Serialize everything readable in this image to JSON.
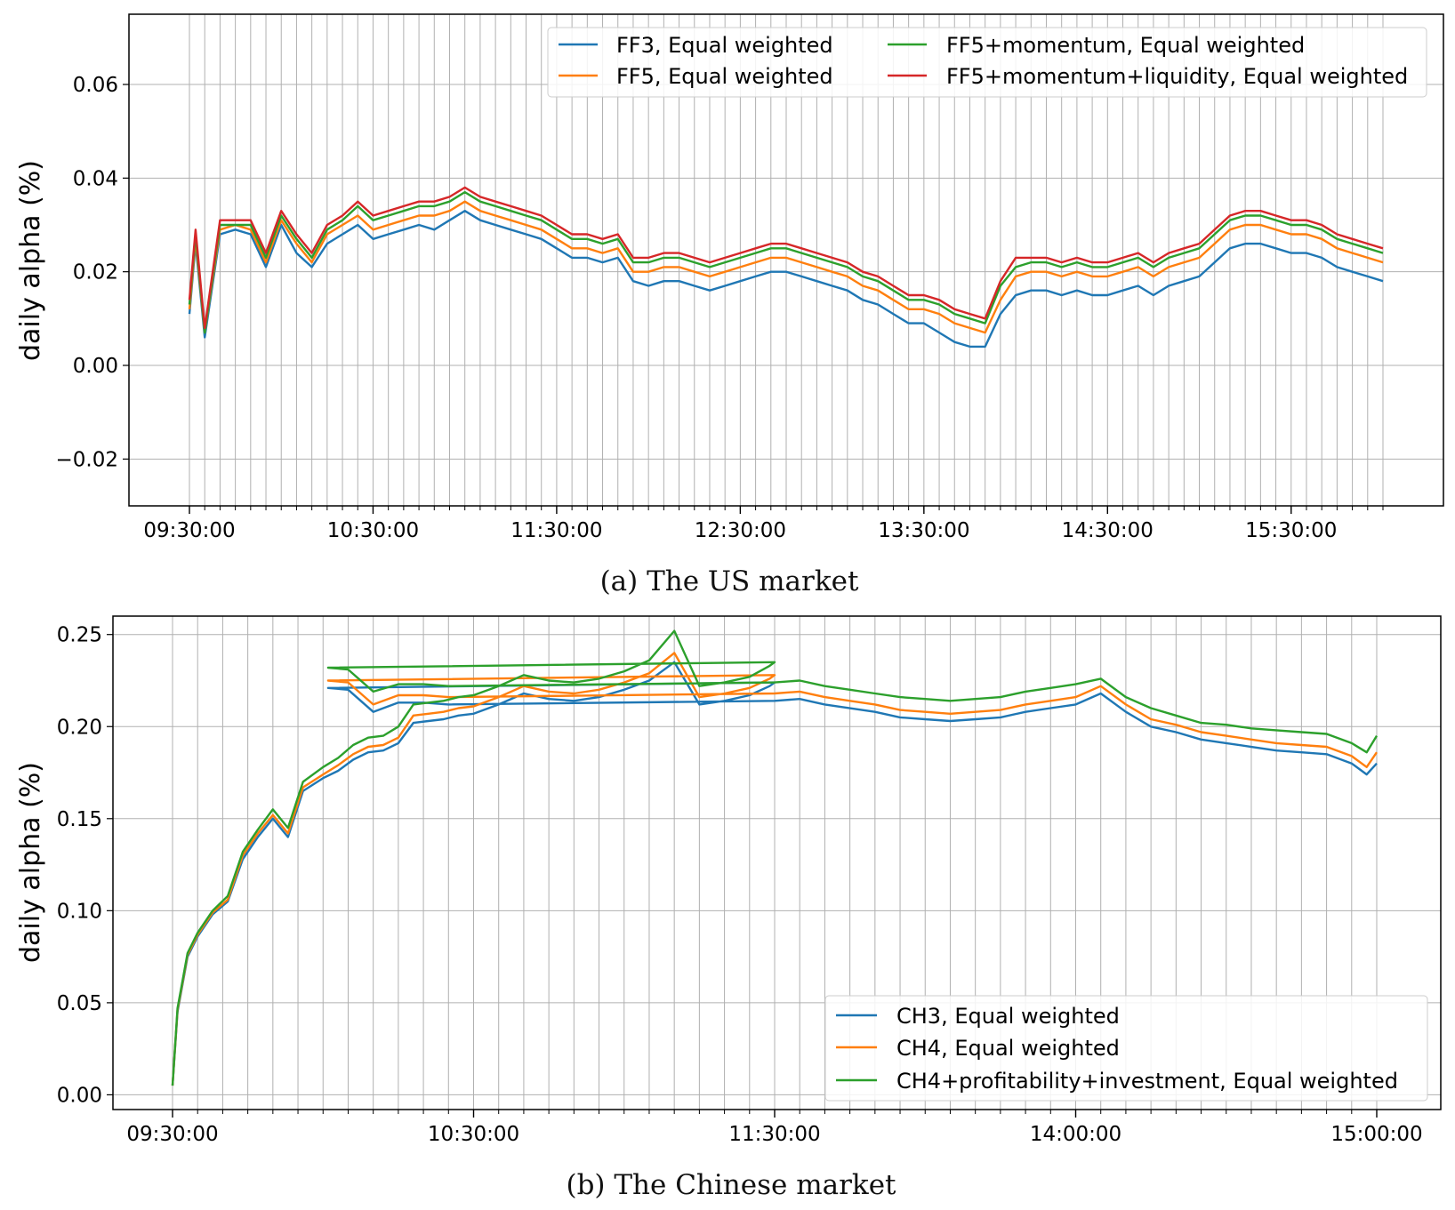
{
  "chart_data": [
    {
      "type": "line",
      "caption": "(a) The US market",
      "ylabel": "daily alpha (%)",
      "ylim": [
        -0.03,
        0.075
      ],
      "yticks": [
        -0.02,
        0.0,
        0.02,
        0.04,
        0.06
      ],
      "ytick_labels": [
        "−0.02",
        "0.00",
        "0.02",
        "0.04",
        "0.06"
      ],
      "x_range": [
        "09:30:00",
        "16:00:00"
      ],
      "xtick_labels": [
        "09:30:00",
        "10:30:00",
        "11:30:00",
        "12:30:00",
        "13:30:00",
        "14:30:00",
        "15:30:00"
      ],
      "grid": true,
      "legend_position": "top-right",
      "legend_columns": 2,
      "x": [
        "09:30",
        "09:32",
        "09:35",
        "09:40",
        "09:45",
        "09:50",
        "09:55",
        "10:00",
        "10:05",
        "10:10",
        "10:15",
        "10:20",
        "10:25",
        "10:30",
        "10:35",
        "10:40",
        "10:45",
        "10:50",
        "10:55",
        "11:00",
        "11:05",
        "11:10",
        "11:15",
        "11:20",
        "11:25",
        "11:30",
        "11:35",
        "11:40",
        "11:45",
        "11:50",
        "11:55",
        "12:00",
        "12:05",
        "12:10",
        "12:15",
        "12:20",
        "12:25",
        "12:30",
        "12:35",
        "12:40",
        "12:45",
        "12:50",
        "12:55",
        "13:00",
        "13:05",
        "13:10",
        "13:15",
        "13:20",
        "13:25",
        "13:30",
        "13:35",
        "13:40",
        "13:45",
        "13:50",
        "13:55",
        "14:00",
        "14:05",
        "14:10",
        "14:15",
        "14:20",
        "14:25",
        "14:30",
        "14:35",
        "14:40",
        "14:45",
        "14:50",
        "14:55",
        "15:00",
        "15:05",
        "15:10",
        "15:15",
        "15:20",
        "15:25",
        "15:30",
        "15:35",
        "15:40",
        "15:45",
        "15:50",
        "15:55",
        "16:00"
      ],
      "series": [
        {
          "name": "FF3, Equal weighted",
          "color": "#1f77b4",
          "values": [
            0.011,
            0.026,
            0.006,
            0.028,
            0.029,
            0.028,
            0.021,
            0.03,
            0.024,
            0.021,
            0.026,
            0.028,
            0.03,
            0.027,
            0.028,
            0.029,
            0.03,
            0.029,
            0.031,
            0.033,
            0.031,
            0.03,
            0.029,
            0.028,
            0.027,
            0.025,
            0.023,
            0.023,
            0.022,
            0.023,
            0.018,
            0.017,
            0.018,
            0.018,
            0.017,
            0.016,
            0.017,
            0.018,
            0.019,
            0.02,
            0.02,
            0.019,
            0.018,
            0.017,
            0.016,
            0.014,
            0.013,
            0.011,
            0.009,
            0.009,
            0.007,
            0.005,
            0.004,
            0.004,
            0.011,
            0.015,
            0.016,
            0.016,
            0.015,
            0.016,
            0.015,
            0.015,
            0.016,
            0.017,
            0.015,
            0.017,
            0.018,
            0.019,
            0.022,
            0.025,
            0.026,
            0.026,
            0.025,
            0.024,
            0.024,
            0.023,
            0.021,
            0.02,
            0.019,
            0.018
          ]
        },
        {
          "name": "FF5, Equal weighted",
          "color": "#ff7f0e",
          "values": [
            0.012,
            0.027,
            0.007,
            0.029,
            0.03,
            0.029,
            0.022,
            0.031,
            0.026,
            0.022,
            0.028,
            0.03,
            0.032,
            0.029,
            0.03,
            0.031,
            0.032,
            0.032,
            0.033,
            0.035,
            0.033,
            0.032,
            0.031,
            0.03,
            0.029,
            0.027,
            0.025,
            0.025,
            0.024,
            0.025,
            0.02,
            0.02,
            0.021,
            0.021,
            0.02,
            0.019,
            0.02,
            0.021,
            0.022,
            0.023,
            0.023,
            0.022,
            0.021,
            0.02,
            0.019,
            0.017,
            0.016,
            0.014,
            0.012,
            0.012,
            0.011,
            0.009,
            0.008,
            0.007,
            0.014,
            0.019,
            0.02,
            0.02,
            0.019,
            0.02,
            0.019,
            0.019,
            0.02,
            0.021,
            0.019,
            0.021,
            0.022,
            0.023,
            0.026,
            0.029,
            0.03,
            0.03,
            0.029,
            0.028,
            0.028,
            0.027,
            0.025,
            0.024,
            0.023,
            0.022
          ]
        },
        {
          "name": "FF5+momentum, Equal weighted",
          "color": "#2ca02c",
          "values": [
            0.013,
            0.028,
            0.007,
            0.03,
            0.03,
            0.03,
            0.023,
            0.032,
            0.027,
            0.023,
            0.029,
            0.031,
            0.034,
            0.031,
            0.032,
            0.033,
            0.034,
            0.034,
            0.035,
            0.037,
            0.035,
            0.034,
            0.033,
            0.032,
            0.031,
            0.029,
            0.027,
            0.027,
            0.026,
            0.027,
            0.022,
            0.022,
            0.023,
            0.023,
            0.022,
            0.021,
            0.022,
            0.023,
            0.024,
            0.025,
            0.025,
            0.024,
            0.023,
            0.022,
            0.021,
            0.019,
            0.018,
            0.016,
            0.014,
            0.014,
            0.013,
            0.011,
            0.01,
            0.009,
            0.017,
            0.021,
            0.022,
            0.022,
            0.021,
            0.022,
            0.021,
            0.021,
            0.022,
            0.023,
            0.021,
            0.023,
            0.024,
            0.025,
            0.028,
            0.031,
            0.032,
            0.032,
            0.031,
            0.03,
            0.03,
            0.029,
            0.027,
            0.026,
            0.025,
            0.024
          ]
        },
        {
          "name": "FF5+momentum+liquidity, Equal weighted",
          "color": "#d62728",
          "values": [
            0.014,
            0.029,
            0.008,
            0.031,
            0.031,
            0.031,
            0.024,
            0.033,
            0.028,
            0.024,
            0.03,
            0.032,
            0.035,
            0.032,
            0.033,
            0.034,
            0.035,
            0.035,
            0.036,
            0.038,
            0.036,
            0.035,
            0.034,
            0.033,
            0.032,
            0.03,
            0.028,
            0.028,
            0.027,
            0.028,
            0.023,
            0.023,
            0.024,
            0.024,
            0.023,
            0.022,
            0.023,
            0.024,
            0.025,
            0.026,
            0.026,
            0.025,
            0.024,
            0.023,
            0.022,
            0.02,
            0.019,
            0.017,
            0.015,
            0.015,
            0.014,
            0.012,
            0.011,
            0.01,
            0.018,
            0.023,
            0.023,
            0.023,
            0.022,
            0.023,
            0.022,
            0.022,
            0.023,
            0.024,
            0.022,
            0.024,
            0.025,
            0.026,
            0.029,
            0.032,
            0.033,
            0.033,
            0.032,
            0.031,
            0.031,
            0.03,
            0.028,
            0.027,
            0.026,
            0.025
          ]
        }
      ]
    },
    {
      "type": "line",
      "caption": "(b) The Chinese market",
      "ylabel": "daily alpha (%)",
      "ylim": [
        -0.008,
        0.26
      ],
      "yticks": [
        0.0,
        0.05,
        0.1,
        0.15,
        0.2,
        0.25
      ],
      "ytick_labels": [
        "0.00",
        "0.05",
        "0.10",
        "0.15",
        "0.20",
        "0.25"
      ],
      "x_range": [
        "09:30:00",
        "15:00:00"
      ],
      "xtick_labels": [
        "09:30:00",
        "10:30:00",
        "11:30:00",
        "14:00:00",
        "15:00:00"
      ],
      "grid": true,
      "legend_position": "lower-right",
      "legend_columns": 1,
      "x": [
        "09:30",
        "09:31",
        "09:33",
        "09:35",
        "09:38",
        "09:41",
        "09:44",
        "09:47",
        "09:50",
        "09:53",
        "09:56",
        "10:00",
        "10:03",
        "10:06",
        "10:09",
        "10:12",
        "10:15",
        "10:18",
        "10:21",
        "10:24",
        "10:27",
        "10:30",
        "10:35",
        "10:40",
        "10:45",
        "10:50",
        "10:55",
        "11:00",
        "11:05",
        "11:10",
        "11:15",
        "11:20",
        "11:25",
        "11:29",
        "11:30",
        "11:31",
        "11:35",
        "11:40",
        "11:45",
        "11:50",
        "11:55",
        "13:00",
        "13:05",
        "13:10",
        "13:15",
        "13:20",
        "13:25",
        "13:30",
        "13:35",
        "13:40",
        "13:45",
        "13:50",
        "13:55",
        "14:00",
        "14:05",
        "14:10",
        "14:15",
        "14:20",
        "14:25",
        "14:30",
        "14:35",
        "14:40",
        "14:45",
        "14:50",
        "14:55",
        "14:58",
        "15:00"
      ],
      "series": [
        {
          "name": "CH3, Equal weighted",
          "color": "#1f77b4",
          "values": [
            0.005,
            0.045,
            0.075,
            0.086,
            0.098,
            0.105,
            0.128,
            0.14,
            0.15,
            0.14,
            0.165,
            0.172,
            0.176,
            0.182,
            0.186,
            0.187,
            0.191,
            0.202,
            0.203,
            0.204,
            0.206,
            0.207,
            0.212,
            0.218,
            0.215,
            0.214,
            0.216,
            0.22,
            0.225,
            0.235,
            0.212,
            0.214,
            0.217,
            0.222,
            0.224,
            0.221,
            0.22,
            0.208,
            0.213,
            0.213,
            0.212,
            0.214,
            0.215,
            0.212,
            0.21,
            0.208,
            0.205,
            0.204,
            0.203,
            0.204,
            0.205,
            0.208,
            0.21,
            0.212,
            0.218,
            0.208,
            0.2,
            0.197,
            0.193,
            0.191,
            0.189,
            0.187,
            0.186,
            0.185,
            0.18,
            0.174,
            0.18
          ]
        },
        {
          "name": "CH4, Equal weighted",
          "color": "#ff7f0e",
          "values": [
            0.005,
            0.046,
            0.076,
            0.087,
            0.099,
            0.106,
            0.13,
            0.142,
            0.152,
            0.142,
            0.167,
            0.174,
            0.179,
            0.185,
            0.189,
            0.19,
            0.194,
            0.206,
            0.207,
            0.208,
            0.21,
            0.211,
            0.216,
            0.222,
            0.219,
            0.218,
            0.22,
            0.224,
            0.229,
            0.24,
            0.216,
            0.218,
            0.221,
            0.226,
            0.228,
            0.225,
            0.224,
            0.212,
            0.217,
            0.217,
            0.216,
            0.218,
            0.219,
            0.216,
            0.214,
            0.212,
            0.209,
            0.208,
            0.207,
            0.208,
            0.209,
            0.212,
            0.214,
            0.216,
            0.222,
            0.212,
            0.204,
            0.201,
            0.197,
            0.195,
            0.193,
            0.191,
            0.19,
            0.189,
            0.184,
            0.178,
            0.186
          ]
        },
        {
          "name": "CH4+profitability+investment, Equal weighted",
          "color": "#2ca02c",
          "values": [
            0.005,
            0.047,
            0.077,
            0.088,
            0.1,
            0.108,
            0.132,
            0.144,
            0.155,
            0.145,
            0.17,
            0.178,
            0.183,
            0.19,
            0.194,
            0.195,
            0.2,
            0.212,
            0.213,
            0.214,
            0.216,
            0.217,
            0.222,
            0.228,
            0.225,
            0.224,
            0.226,
            0.23,
            0.236,
            0.252,
            0.222,
            0.224,
            0.227,
            0.233,
            0.235,
            0.232,
            0.231,
            0.219,
            0.223,
            0.223,
            0.222,
            0.224,
            0.225,
            0.222,
            0.22,
            0.218,
            0.216,
            0.215,
            0.214,
            0.215,
            0.216,
            0.219,
            0.221,
            0.223,
            0.226,
            0.216,
            0.21,
            0.206,
            0.202,
            0.201,
            0.199,
            0.198,
            0.197,
            0.196,
            0.191,
            0.186,
            0.195
          ]
        }
      ]
    }
  ]
}
